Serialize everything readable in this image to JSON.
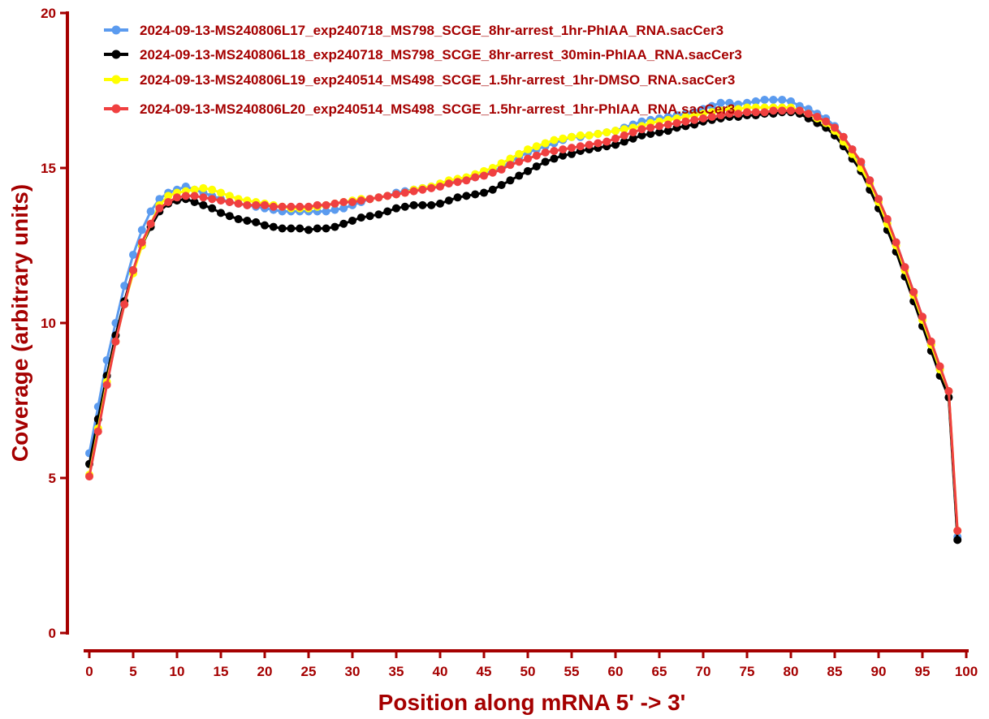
{
  "chart_data": {
    "type": "line",
    "xlabel": "Position along mRNA 5' -> 3'",
    "ylabel": "Coverage (arbitrary units)",
    "xlim": [
      0,
      100
    ],
    "ylim": [
      0,
      20
    ],
    "xticks": [
      0,
      5,
      10,
      15,
      20,
      25,
      30,
      35,
      40,
      45,
      50,
      55,
      60,
      65,
      70,
      75,
      80,
      85,
      90,
      95,
      100
    ],
    "yticks": [
      0,
      5,
      10,
      15,
      20
    ],
    "grid": false,
    "legend_position": "top-left",
    "x": [
      0,
      1,
      2,
      3,
      4,
      5,
      6,
      7,
      8,
      9,
      10,
      11,
      12,
      13,
      14,
      15,
      16,
      17,
      18,
      19,
      20,
      21,
      22,
      23,
      24,
      25,
      26,
      27,
      28,
      29,
      30,
      31,
      32,
      33,
      34,
      35,
      36,
      37,
      38,
      39,
      40,
      41,
      42,
      43,
      44,
      45,
      46,
      47,
      48,
      49,
      50,
      51,
      52,
      53,
      54,
      55,
      56,
      57,
      58,
      59,
      60,
      61,
      62,
      63,
      64,
      65,
      66,
      67,
      68,
      69,
      70,
      71,
      72,
      73,
      74,
      75,
      76,
      77,
      78,
      79,
      80,
      81,
      82,
      83,
      84,
      85,
      86,
      87,
      88,
      89,
      90,
      91,
      92,
      93,
      94,
      95,
      96,
      97,
      98,
      99
    ],
    "series": [
      {
        "name": "2024-09-13-MS240806L17_exp240718_MS798_SCGE_8hr-arrest_1hr-PhIAA_RNA.sacCer3",
        "color": "#5b9bef",
        "values": [
          5.8,
          7.3,
          8.8,
          10.0,
          11.2,
          12.2,
          13.0,
          13.6,
          14.0,
          14.2,
          14.3,
          14.4,
          14.3,
          14.2,
          14.1,
          14.0,
          13.9,
          13.85,
          13.8,
          13.75,
          13.7,
          13.65,
          13.6,
          13.6,
          13.6,
          13.6,
          13.6,
          13.6,
          13.65,
          13.7,
          13.8,
          13.9,
          14.0,
          14.05,
          14.1,
          14.2,
          14.25,
          14.3,
          14.35,
          14.4,
          14.45,
          14.5,
          14.6,
          14.65,
          14.7,
          14.8,
          14.9,
          15.0,
          15.2,
          15.35,
          15.5,
          15.6,
          15.7,
          15.8,
          15.9,
          16.0,
          16.0,
          16.05,
          16.1,
          16.15,
          16.2,
          16.3,
          16.4,
          16.5,
          16.55,
          16.6,
          16.65,
          16.7,
          16.75,
          16.8,
          16.9,
          17.0,
          17.1,
          17.1,
          17.05,
          17.1,
          17.15,
          17.2,
          17.2,
          17.2,
          17.15,
          17.0,
          16.9,
          16.75,
          16.6,
          16.35,
          16.0,
          15.6,
          15.1,
          14.6,
          14.0,
          13.3,
          12.6,
          11.8,
          11.0,
          10.2,
          9.3,
          8.5,
          7.8,
          3.1
        ]
      },
      {
        "name": "2024-09-13-MS240806L18_exp240718_MS798_SCGE_8hr-arrest_30min-PhIAA_RNA.sacCer3",
        "color": "#000000",
        "values": [
          5.45,
          6.9,
          8.3,
          9.6,
          10.7,
          11.7,
          12.5,
          13.1,
          13.6,
          13.85,
          13.95,
          14.0,
          13.9,
          13.8,
          13.7,
          13.55,
          13.45,
          13.35,
          13.3,
          13.25,
          13.15,
          13.1,
          13.05,
          13.05,
          13.05,
          13.0,
          13.05,
          13.05,
          13.1,
          13.2,
          13.3,
          13.4,
          13.45,
          13.5,
          13.6,
          13.7,
          13.75,
          13.8,
          13.8,
          13.8,
          13.85,
          13.95,
          14.05,
          14.1,
          14.15,
          14.2,
          14.3,
          14.45,
          14.6,
          14.75,
          14.9,
          15.05,
          15.2,
          15.3,
          15.4,
          15.45,
          15.55,
          15.6,
          15.65,
          15.7,
          15.75,
          15.85,
          15.95,
          16.05,
          16.1,
          16.15,
          16.2,
          16.3,
          16.35,
          16.4,
          16.5,
          16.55,
          16.6,
          16.65,
          16.65,
          16.7,
          16.7,
          16.75,
          16.75,
          16.8,
          16.8,
          16.75,
          16.6,
          16.45,
          16.3,
          16.05,
          15.7,
          15.3,
          14.9,
          14.3,
          13.7,
          13.0,
          12.3,
          11.5,
          10.7,
          9.9,
          9.1,
          8.3,
          7.6,
          3.0
        ]
      },
      {
        "name": "2024-09-13-MS240806L19_exp240514_MS498_SCGE_1.5hr-arrest_1hr-DMSO_RNA.sacCer3",
        "color": "#ffff00",
        "values": [
          5.1,
          6.6,
          8.1,
          9.4,
          10.6,
          11.6,
          12.5,
          13.2,
          13.8,
          14.1,
          14.2,
          14.25,
          14.3,
          14.35,
          14.3,
          14.2,
          14.1,
          14.0,
          13.95,
          13.9,
          13.85,
          13.8,
          13.75,
          13.7,
          13.7,
          13.7,
          13.75,
          13.8,
          13.85,
          13.9,
          13.95,
          14.0,
          14.0,
          14.05,
          14.1,
          14.15,
          14.2,
          14.3,
          14.35,
          14.4,
          14.5,
          14.6,
          14.65,
          14.7,
          14.8,
          14.9,
          15.0,
          15.15,
          15.3,
          15.45,
          15.6,
          15.7,
          15.8,
          15.9,
          15.95,
          16.0,
          16.05,
          16.05,
          16.1,
          16.15,
          16.2,
          16.25,
          16.3,
          16.35,
          16.45,
          16.5,
          16.55,
          16.6,
          16.65,
          16.7,
          16.75,
          16.8,
          16.85,
          16.9,
          16.9,
          16.95,
          16.95,
          16.95,
          16.95,
          16.95,
          16.95,
          16.85,
          16.75,
          16.6,
          16.45,
          16.2,
          15.85,
          15.45,
          15.0,
          14.5,
          13.9,
          13.2,
          12.5,
          11.7,
          10.9,
          10.1,
          9.3,
          8.5,
          7.8,
          3.3
        ]
      },
      {
        "name": "2024-09-13-MS240806L20_exp240514_MS498_SCGE_1.5hr-arrest_1hr-PhIAA_RNA.sacCer3",
        "color": "#f04040",
        "values": [
          5.05,
          6.5,
          8.0,
          9.4,
          10.6,
          11.7,
          12.6,
          13.2,
          13.7,
          13.9,
          14.05,
          14.1,
          14.1,
          14.05,
          14.0,
          13.95,
          13.9,
          13.85,
          13.8,
          13.8,
          13.8,
          13.75,
          13.75,
          13.75,
          13.75,
          13.75,
          13.8,
          13.8,
          13.85,
          13.9,
          13.9,
          13.95,
          14.0,
          14.05,
          14.1,
          14.15,
          14.2,
          14.25,
          14.3,
          14.35,
          14.4,
          14.5,
          14.55,
          14.6,
          14.7,
          14.75,
          14.85,
          14.95,
          15.1,
          15.2,
          15.3,
          15.4,
          15.5,
          15.55,
          15.6,
          15.65,
          15.7,
          15.75,
          15.8,
          15.85,
          15.95,
          16.05,
          16.15,
          16.25,
          16.3,
          16.35,
          16.4,
          16.45,
          16.5,
          16.55,
          16.6,
          16.65,
          16.7,
          16.75,
          16.75,
          16.8,
          16.8,
          16.8,
          16.85,
          16.85,
          16.85,
          16.85,
          16.75,
          16.65,
          16.5,
          16.3,
          16.0,
          15.6,
          15.2,
          14.6,
          14.0,
          13.35,
          12.6,
          11.8,
          11.0,
          10.2,
          9.4,
          8.6,
          7.8,
          3.3
        ]
      }
    ]
  }
}
